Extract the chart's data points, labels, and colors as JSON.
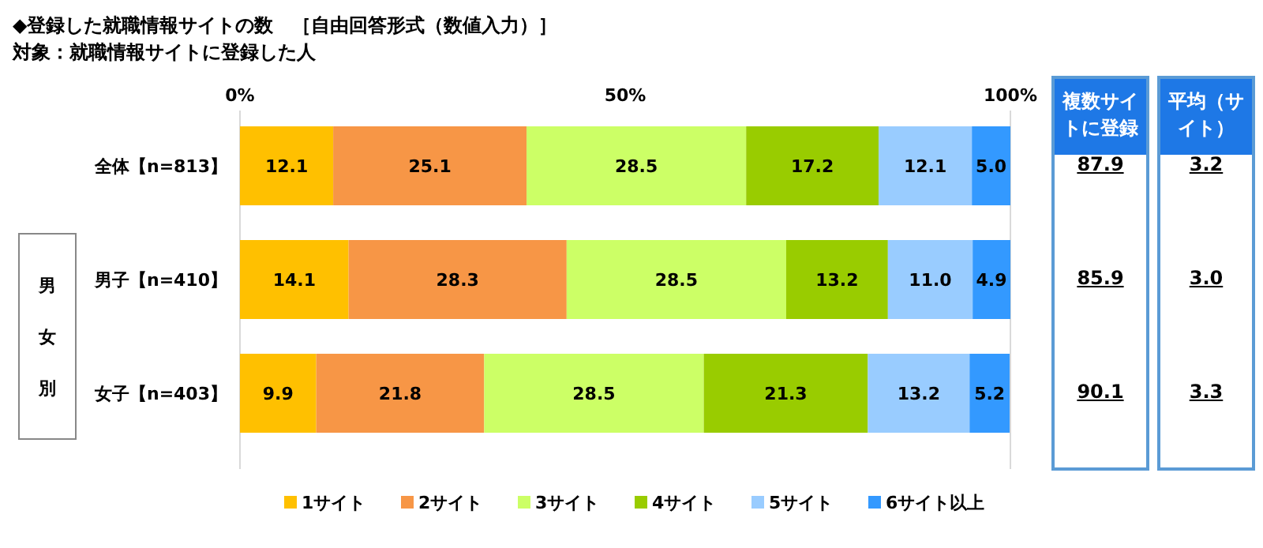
{
  "chart_data": [
    {
      "type": "bar",
      "orientation": "horizontal",
      "stacked": true,
      "title": "◆登録した就職情報サイトの数　［自由回答形式（数値入力）］",
      "subtitle": "対象：就職情報サイトに登録した人",
      "categories": [
        "全体【n=813】",
        "男子【n=410】",
        "女子【n=403】"
      ],
      "series": [
        {
          "name": "1サイト",
          "color": "#ffc000",
          "values": [
            12.1,
            14.1,
            9.9
          ],
          "value_labels": [
            "12.1",
            "14.1",
            "9.9"
          ]
        },
        {
          "name": "2サイト",
          "color": "#f79646",
          "values": [
            25.1,
            28.3,
            21.8
          ],
          "value_labels": [
            "25.1",
            "28.3",
            "21.8"
          ]
        },
        {
          "name": "3サイト",
          "color": "#ccff66",
          "values": [
            28.5,
            28.5,
            28.5
          ],
          "value_labels": [
            "28.5",
            "28.5",
            "28.5"
          ]
        },
        {
          "name": "4サイト",
          "color": "#99cc00",
          "values": [
            17.2,
            13.2,
            21.3
          ],
          "value_labels": [
            "17.2",
            "13.2",
            "21.3"
          ]
        },
        {
          "name": "5サイト",
          "color": "#99ccff",
          "values": [
            12.1,
            11.0,
            13.2
          ],
          "value_labels": [
            "12.1",
            "11.0",
            "13.2"
          ]
        },
        {
          "name": "6サイト以上",
          "color": "#3399ff",
          "values": [
            5.0,
            4.9,
            5.2
          ],
          "value_labels": [
            "5.0",
            "4.9",
            "5.2"
          ]
        }
      ],
      "xlim": [
        0,
        100
      ],
      "xticks": [
        {
          "value": 0,
          "label": "0%"
        },
        {
          "value": 50,
          "label": "50%"
        },
        {
          "value": 100,
          "label": "100%"
        }
      ],
      "legend": "bottom",
      "annotations": [
        "男女別"
      ]
    },
    {
      "type": "other",
      "title": "複数サイトに登録",
      "values": [
        87.9,
        85.9,
        90.1
      ],
      "data_labels": true
    },
    {
      "type": "other",
      "title": "平均（サイト）",
      "values": [
        3.2,
        3.0,
        3.3
      ],
      "value_labels": [
        "3.2",
        "3.0",
        "3.3"
      ]
    }
  ]
}
